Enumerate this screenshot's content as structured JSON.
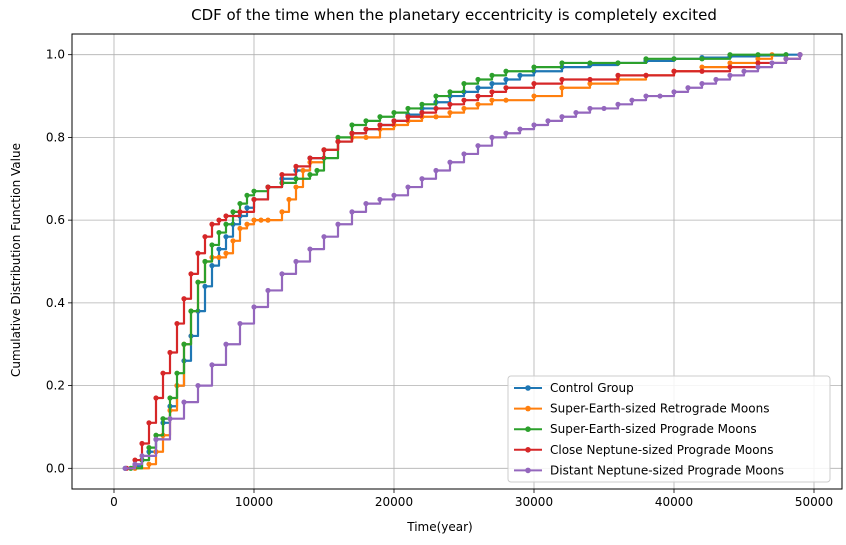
{
  "chart_data": {
    "type": "line",
    "title": "CDF of the time when the planetary eccentricity is completely excited",
    "xlabel": "Time(year)",
    "ylabel": "Cumulative Distribution Function Value",
    "xlim": [
      -3000,
      52000
    ],
    "ylim": [
      -0.05,
      1.05
    ],
    "xticks": [
      0,
      10000,
      20000,
      30000,
      40000,
      50000
    ],
    "xtick_labels": [
      "0",
      "10000",
      "20000",
      "30000",
      "40000",
      "50000"
    ],
    "yticks": [
      0.0,
      0.2,
      0.4,
      0.6,
      0.8,
      1.0
    ],
    "ytick_labels": [
      "0.0",
      "0.2",
      "0.4",
      "0.6",
      "0.8",
      "1.0"
    ],
    "grid": true,
    "legend_position": "lower-right",
    "series": [
      {
        "name": "Control Group",
        "color": "#1f77b4",
        "x": [
          800,
          1500,
          2000,
          2500,
          3000,
          3500,
          4000,
          4500,
          5000,
          5500,
          6000,
          6500,
          7000,
          7500,
          8000,
          8500,
          9000,
          9500,
          10000,
          11000,
          12000,
          13000,
          14000,
          15000,
          16000,
          17000,
          18000,
          19000,
          20000,
          21000,
          22000,
          23000,
          24000,
          25000,
          26000,
          27000,
          28000,
          29000,
          30000,
          32000,
          34000,
          36000,
          38000,
          40000,
          42000,
          44000,
          46000,
          48000,
          49000
        ],
        "y": [
          0.0,
          0.005,
          0.02,
          0.04,
          0.07,
          0.11,
          0.15,
          0.2,
          0.26,
          0.32,
          0.38,
          0.44,
          0.49,
          0.53,
          0.56,
          0.59,
          0.61,
          0.63,
          0.65,
          0.68,
          0.7,
          0.72,
          0.75,
          0.77,
          0.79,
          0.81,
          0.82,
          0.83,
          0.84,
          0.855,
          0.87,
          0.885,
          0.9,
          0.91,
          0.92,
          0.93,
          0.94,
          0.95,
          0.96,
          0.97,
          0.975,
          0.98,
          0.985,
          0.99,
          0.993,
          0.996,
          0.998,
          1.0,
          1.0
        ]
      },
      {
        "name": "Super-Earth-sized Retrograde Moons",
        "color": "#ff7f0e",
        "x": [
          1500,
          2500,
          3000,
          3500,
          4000,
          4500,
          5000,
          5500,
          6000,
          6500,
          7000,
          7500,
          8000,
          8500,
          9000,
          9500,
          10000,
          10500,
          11000,
          12000,
          12500,
          13000,
          13500,
          14000,
          15000,
          16000,
          17000,
          18000,
          19000,
          20000,
          21000,
          22000,
          23000,
          24000,
          25000,
          26000,
          27000,
          28000,
          30000,
          32000,
          34000,
          36000,
          38000,
          40000,
          42000,
          44000,
          46000,
          47000
        ],
        "y": [
          0.0,
          0.01,
          0.04,
          0.08,
          0.14,
          0.2,
          0.3,
          0.38,
          0.45,
          0.5,
          0.51,
          0.51,
          0.52,
          0.55,
          0.58,
          0.59,
          0.6,
          0.6,
          0.6,
          0.62,
          0.65,
          0.68,
          0.72,
          0.74,
          0.77,
          0.79,
          0.8,
          0.8,
          0.82,
          0.83,
          0.84,
          0.85,
          0.85,
          0.86,
          0.87,
          0.88,
          0.89,
          0.89,
          0.9,
          0.92,
          0.93,
          0.94,
          0.95,
          0.96,
          0.97,
          0.98,
          0.99,
          1.0
        ]
      },
      {
        "name": "Super-Earth-sized Prograde Moons",
        "color": "#2ca02c",
        "x": [
          1200,
          2000,
          2500,
          3000,
          3500,
          4000,
          4500,
          5000,
          5500,
          6000,
          6500,
          7000,
          7500,
          8000,
          8500,
          9000,
          9500,
          10000,
          11000,
          12000,
          13000,
          14000,
          14500,
          15000,
          16000,
          17000,
          18000,
          19000,
          20000,
          21000,
          22000,
          23000,
          24000,
          25000,
          26000,
          27000,
          28000,
          30000,
          32000,
          34000,
          36000,
          38000,
          40000,
          42000,
          44000,
          46000,
          48000
        ],
        "y": [
          0.0,
          0.02,
          0.05,
          0.08,
          0.12,
          0.17,
          0.23,
          0.3,
          0.38,
          0.45,
          0.5,
          0.54,
          0.57,
          0.59,
          0.62,
          0.64,
          0.66,
          0.67,
          0.68,
          0.69,
          0.7,
          0.71,
          0.72,
          0.75,
          0.8,
          0.83,
          0.84,
          0.85,
          0.86,
          0.87,
          0.88,
          0.9,
          0.91,
          0.93,
          0.94,
          0.95,
          0.96,
          0.97,
          0.98,
          0.98,
          0.98,
          0.99,
          0.99,
          0.99,
          1.0,
          1.0,
          1.0
        ]
      },
      {
        "name": "Close Neptune-sized Prograde Moons",
        "color": "#d62728",
        "x": [
          900,
          1500,
          2000,
          2500,
          3000,
          3500,
          4000,
          4500,
          5000,
          5500,
          6000,
          6500,
          7000,
          7500,
          8000,
          9000,
          10000,
          11000,
          12000,
          13000,
          14000,
          15000,
          16000,
          17000,
          18000,
          19000,
          20000,
          21000,
          22000,
          23000,
          24000,
          25000,
          26000,
          27000,
          28000,
          30000,
          32000,
          34000,
          36000,
          38000,
          40000,
          42000,
          44000,
          46000,
          48000,
          49000
        ],
        "y": [
          0.0,
          0.02,
          0.06,
          0.11,
          0.17,
          0.23,
          0.28,
          0.35,
          0.41,
          0.47,
          0.52,
          0.56,
          0.59,
          0.6,
          0.61,
          0.62,
          0.65,
          0.68,
          0.71,
          0.73,
          0.75,
          0.77,
          0.79,
          0.81,
          0.82,
          0.83,
          0.84,
          0.85,
          0.86,
          0.87,
          0.88,
          0.89,
          0.9,
          0.91,
          0.92,
          0.93,
          0.94,
          0.94,
          0.95,
          0.95,
          0.96,
          0.96,
          0.97,
          0.98,
          0.99,
          1.0
        ]
      },
      {
        "name": "Distant Neptune-sized Prograde Moons",
        "color": "#9467bd",
        "x": [
          800,
          1500,
          2000,
          3000,
          4000,
          5000,
          6000,
          7000,
          8000,
          9000,
          10000,
          11000,
          12000,
          13000,
          14000,
          15000,
          16000,
          17000,
          18000,
          19000,
          20000,
          21000,
          22000,
          23000,
          24000,
          25000,
          26000,
          27000,
          28000,
          29000,
          30000,
          31000,
          32000,
          33000,
          34000,
          35000,
          36000,
          37000,
          38000,
          39000,
          40000,
          41000,
          42000,
          43000,
          44000,
          45000,
          46000,
          47000,
          48000,
          49000
        ],
        "y": [
          0.0,
          0.01,
          0.03,
          0.07,
          0.12,
          0.16,
          0.2,
          0.25,
          0.3,
          0.35,
          0.39,
          0.43,
          0.47,
          0.5,
          0.53,
          0.56,
          0.59,
          0.62,
          0.64,
          0.65,
          0.66,
          0.68,
          0.7,
          0.72,
          0.74,
          0.76,
          0.78,
          0.8,
          0.81,
          0.82,
          0.83,
          0.84,
          0.85,
          0.86,
          0.87,
          0.87,
          0.88,
          0.89,
          0.9,
          0.9,
          0.91,
          0.92,
          0.93,
          0.94,
          0.95,
          0.96,
          0.97,
          0.98,
          0.99,
          1.0
        ]
      }
    ]
  }
}
